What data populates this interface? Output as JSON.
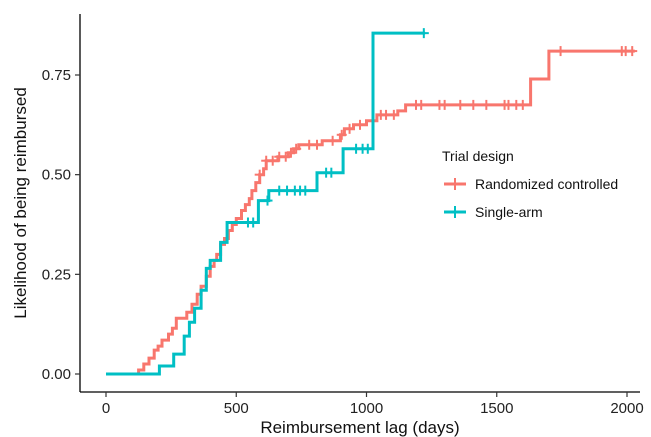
{
  "chart_data": {
    "type": "line",
    "subtype": "step (Kaplan-Meier style cumulative incidence with censor marks)",
    "title": "",
    "xlabel": "Reimbursement lag (days)",
    "ylabel": "Likelihood of being reimbursed",
    "xlim": [
      -100,
      2060
    ],
    "ylim": [
      -0.03,
      0.9
    ],
    "x_ticks": [
      0,
      500,
      1000,
      1500,
      2000
    ],
    "x_tick_labels": [
      "0",
      "500",
      "1000",
      "1500",
      "2000"
    ],
    "y_ticks": [
      0,
      0.25,
      0.5,
      0.75
    ],
    "y_tick_labels": [
      "0.00",
      "0.25",
      "0.50",
      "0.75"
    ],
    "grid": false,
    "legend": {
      "title": "Trial design",
      "position": "right"
    },
    "series": [
      {
        "name": "Randomized controlled",
        "color": "#F8766D",
        "steps": [
          [
            125,
            0.0
          ],
          [
            125,
            0.01
          ],
          [
            145,
            0.025
          ],
          [
            165,
            0.04
          ],
          [
            185,
            0.06
          ],
          [
            200,
            0.07
          ],
          [
            215,
            0.085
          ],
          [
            240,
            0.1
          ],
          [
            255,
            0.115
          ],
          [
            270,
            0.14
          ],
          [
            310,
            0.155
          ],
          [
            330,
            0.175
          ],
          [
            350,
            0.2
          ],
          [
            365,
            0.22
          ],
          [
            385,
            0.245
          ],
          [
            400,
            0.27
          ],
          [
            415,
            0.285
          ],
          [
            425,
            0.3
          ],
          [
            440,
            0.325
          ],
          [
            455,
            0.34
          ],
          [
            470,
            0.36
          ],
          [
            485,
            0.375
          ],
          [
            500,
            0.39
          ],
          [
            520,
            0.41
          ],
          [
            535,
            0.425
          ],
          [
            550,
            0.44
          ],
          [
            560,
            0.46
          ],
          [
            575,
            0.48
          ],
          [
            590,
            0.5
          ],
          [
            605,
            0.515
          ],
          [
            615,
            0.535
          ],
          [
            660,
            0.545
          ],
          [
            700,
            0.555
          ],
          [
            720,
            0.565
          ],
          [
            740,
            0.575
          ],
          [
            830,
            0.585
          ],
          [
            900,
            0.6
          ],
          [
            915,
            0.615
          ],
          [
            950,
            0.625
          ],
          [
            1000,
            0.635
          ],
          [
            1040,
            0.65
          ],
          [
            1120,
            0.66
          ],
          [
            1150,
            0.675
          ],
          [
            1630,
            0.74
          ],
          [
            1700,
            0.81
          ],
          [
            2030,
            0.81
          ]
        ],
        "censor_x": [
          590,
          615,
          640,
          665,
          690,
          710,
          730,
          780,
          810,
          870,
          905,
          935,
          975,
          1055,
          1075,
          1105,
          1190,
          1210,
          1280,
          1300,
          1360,
          1410,
          1460,
          1530,
          1545,
          1575,
          1600,
          1745,
          1980,
          1995,
          2020
        ]
      },
      {
        "name": "Single-arm",
        "color": "#00BFC4",
        "steps": [
          [
            0,
            0.0
          ],
          [
            205,
            0.02
          ],
          [
            260,
            0.05
          ],
          [
            300,
            0.095
          ],
          [
            320,
            0.13
          ],
          [
            340,
            0.165
          ],
          [
            365,
            0.21
          ],
          [
            385,
            0.265
          ],
          [
            400,
            0.285
          ],
          [
            440,
            0.33
          ],
          [
            465,
            0.38
          ],
          [
            585,
            0.435
          ],
          [
            625,
            0.46
          ],
          [
            810,
            0.505
          ],
          [
            910,
            0.565
          ],
          [
            1025,
            0.855
          ],
          [
            1225,
            0.855
          ]
        ],
        "censor_x": [
          545,
          565,
          620,
          665,
          695,
          725,
          745,
          765,
          845,
          865,
          960,
          985,
          1005,
          1220
        ]
      }
    ]
  }
}
